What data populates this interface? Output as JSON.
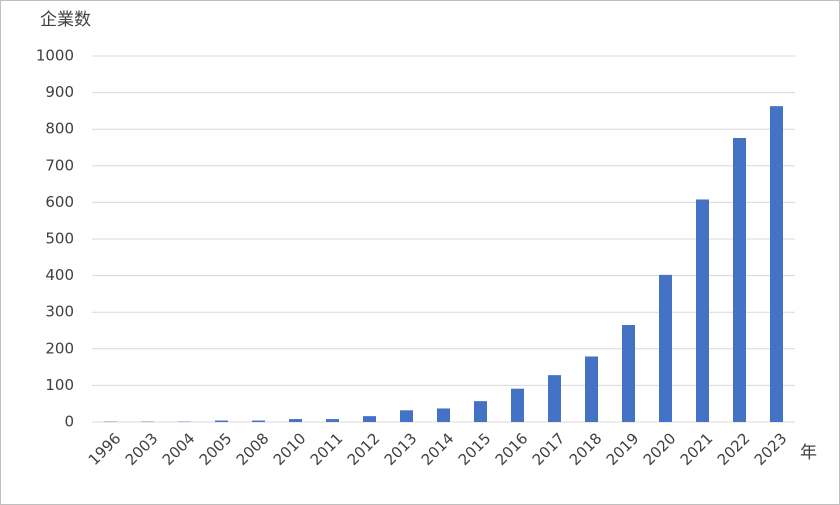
{
  "chart_data": {
    "type": "bar",
    "y_label": "企業数",
    "x_label": "年",
    "categories": [
      "1996",
      "2003",
      "2004",
      "2005",
      "2008",
      "2010",
      "2011",
      "2012",
      "2013",
      "2014",
      "2015",
      "2016",
      "2017",
      "2018",
      "2019",
      "2020",
      "2021",
      "2022",
      "2023"
    ],
    "values": [
      1,
      1,
      1,
      4,
      4,
      8,
      8,
      16,
      32,
      37,
      57,
      91,
      128,
      179,
      265,
      402,
      608,
      776,
      863
    ],
    "color": "#4472c4",
    "ylim": [
      0,
      1000
    ],
    "yticks": [
      0,
      100,
      200,
      300,
      400,
      500,
      600,
      700,
      800,
      900,
      1000
    ],
    "grid": true
  }
}
